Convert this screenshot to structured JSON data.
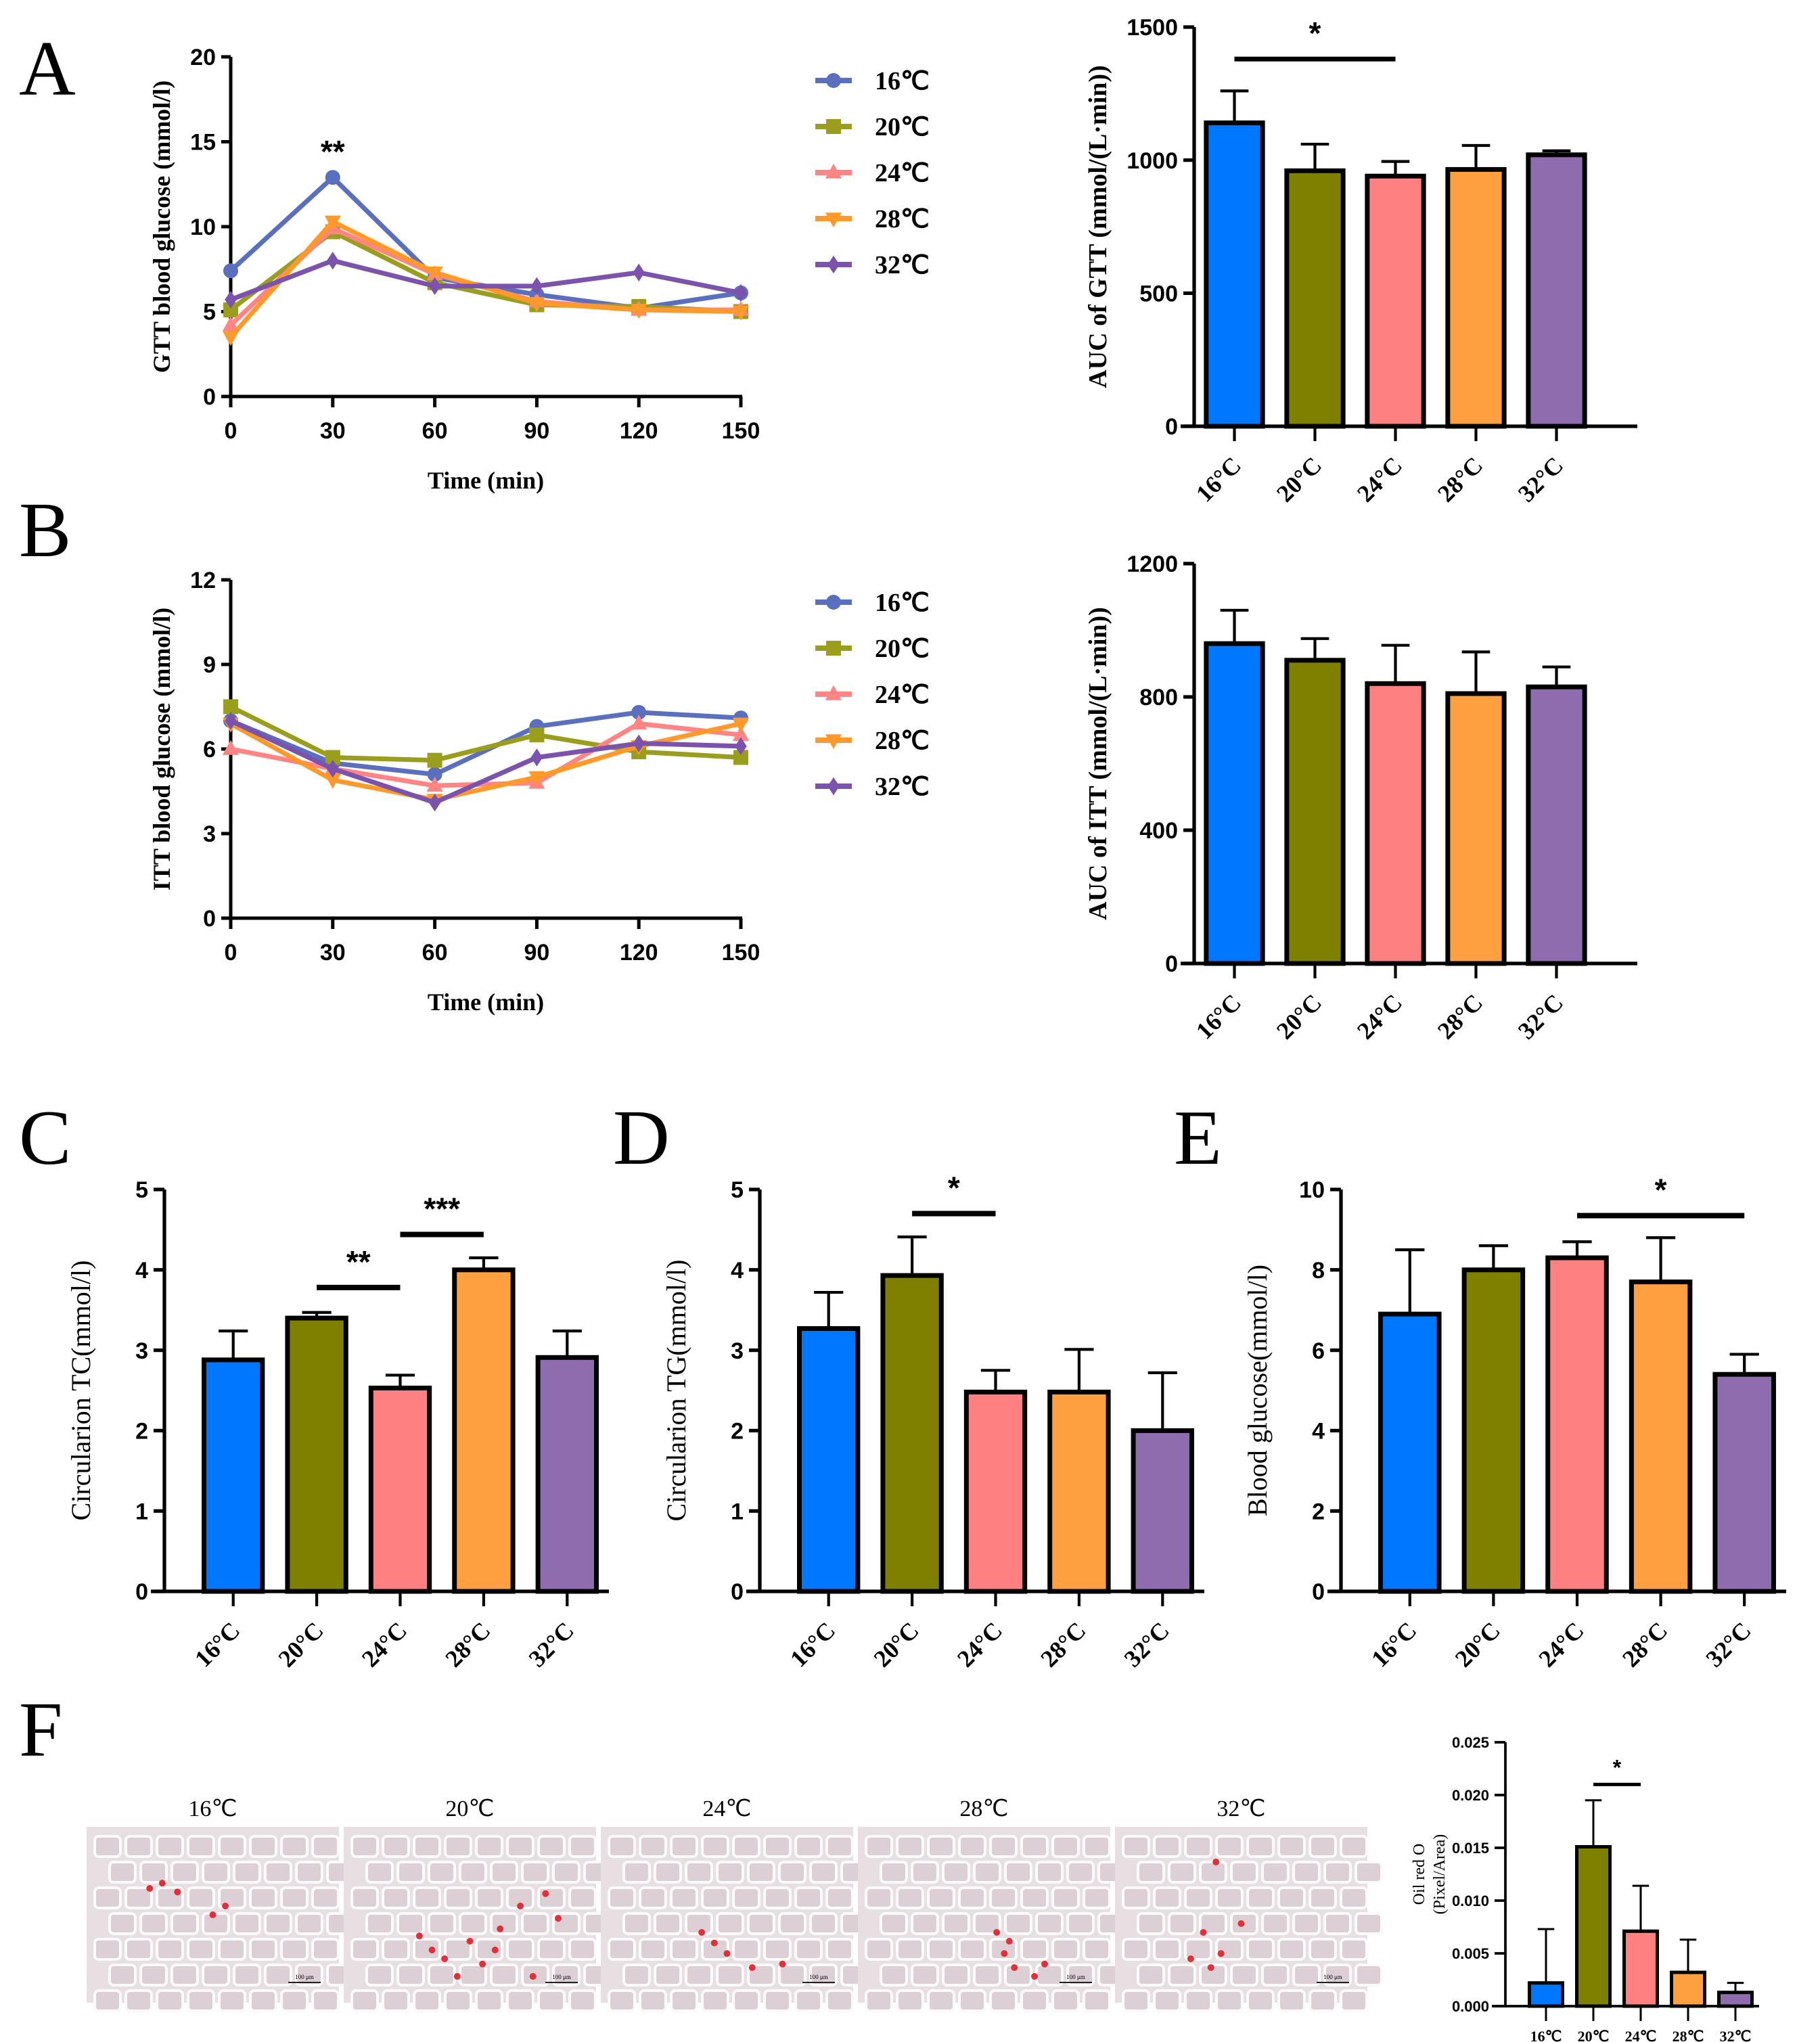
{
  "colors": {
    "16": "#0077FF",
    "20": "#808000",
    "24": "#FF8080",
    "28": "#FFA040",
    "32": "#8E6CAE",
    "line16": "#5B6FBF",
    "line20": "#9A9E1C",
    "line24": "#FF8585",
    "line28": "#FF9A2A",
    "line32": "#7B52AC"
  },
  "panel_labels": [
    "A",
    "B",
    "C",
    "D",
    "E",
    "F"
  ],
  "chart_data": [
    {
      "id": "gtt-line",
      "panel": "A",
      "type": "line",
      "title": "",
      "xlabel": "Time (min)",
      "ylabel": "GTT blood glucose (mmol/l)",
      "x": [
        0,
        30,
        60,
        90,
        120,
        150
      ],
      "xticks": [
        "0",
        "30",
        "60",
        "90",
        "120",
        "150"
      ],
      "ylim": [
        0,
        20
      ],
      "yticks": [
        "0",
        "5",
        "10",
        "15",
        "20"
      ],
      "legend_position": "right",
      "annotations": [
        {
          "x": 30,
          "text": "**"
        }
      ],
      "series": [
        {
          "name": "16℃",
          "marker": "circle",
          "values": [
            7.4,
            12.9,
            7.0,
            6.0,
            5.2,
            6.1
          ]
        },
        {
          "name": "20℃",
          "marker": "square",
          "values": [
            5.1,
            9.7,
            6.7,
            5.4,
            5.3,
            5.0
          ]
        },
        {
          "name": "24℃",
          "marker": "triangle-up",
          "values": [
            4.2,
            9.9,
            7.2,
            5.6,
            5.1,
            5.1
          ]
        },
        {
          "name": "28℃",
          "marker": "triangle-down",
          "values": [
            3.5,
            10.3,
            7.3,
            5.5,
            5.1,
            5.0
          ]
        },
        {
          "name": "32℃",
          "marker": "diamond",
          "values": [
            5.7,
            8.0,
            6.5,
            6.5,
            7.3,
            6.1
          ]
        }
      ]
    },
    {
      "id": "gtt-auc",
      "panel": "A",
      "type": "bar",
      "ylabel": "AUC of GTT (mmol/(L·min))",
      "categories": [
        "16°C",
        "20°C",
        "24°C",
        "28°C",
        "32°C"
      ],
      "values": [
        1140,
        960,
        940,
        965,
        1020
      ],
      "error": [
        1260,
        1060,
        995,
        1055,
        1035
      ],
      "ylim": [
        0,
        1500
      ],
      "yticks": [
        "0",
        "500",
        "1000",
        "1500"
      ],
      "significance": [
        {
          "from": 0,
          "to": 2,
          "text": "*"
        }
      ]
    },
    {
      "id": "itt-line",
      "panel": "B",
      "type": "line",
      "xlabel": "Time (min)",
      "ylabel": "ITT blood glucose (mmol/l)",
      "x": [
        0,
        30,
        60,
        90,
        120,
        150
      ],
      "xticks": [
        "0",
        "30",
        "60",
        "90",
        "120",
        "150"
      ],
      "ylim": [
        0,
        12
      ],
      "yticks": [
        "0",
        "3",
        "6",
        "9",
        "12"
      ],
      "legend_position": "right",
      "annotations": [],
      "series": [
        {
          "name": "16℃",
          "marker": "circle",
          "values": [
            7.0,
            5.5,
            5.1,
            6.8,
            7.3,
            7.1
          ]
        },
        {
          "name": "20℃",
          "marker": "square",
          "values": [
            7.5,
            5.7,
            5.6,
            6.5,
            5.9,
            5.7
          ]
        },
        {
          "name": "24℃",
          "marker": "triangle-up",
          "values": [
            6.0,
            5.3,
            4.7,
            4.8,
            6.9,
            6.5
          ]
        },
        {
          "name": "28℃",
          "marker": "triangle-down",
          "values": [
            6.9,
            4.9,
            4.2,
            5.0,
            6.1,
            6.9
          ]
        },
        {
          "name": "32℃",
          "marker": "diamond",
          "values": [
            7.0,
            5.3,
            4.1,
            5.7,
            6.2,
            6.1
          ]
        }
      ]
    },
    {
      "id": "itt-auc",
      "panel": "B",
      "type": "bar",
      "ylabel": "AUC of ITT (mmol/(L·min))",
      "categories": [
        "16°C",
        "20°C",
        "24°C",
        "28°C",
        "32°C"
      ],
      "values": [
        960,
        910,
        840,
        810,
        830
      ],
      "error": [
        1060,
        975,
        955,
        935,
        890
      ],
      "ylim": [
        0,
        1200
      ],
      "yticks": [
        "0",
        "400",
        "800",
        "1200"
      ],
      "significance": []
    },
    {
      "id": "tc-bar",
      "panel": "C",
      "type": "bar",
      "ylabel": "Circularion TC(mmol/l)",
      "categories": [
        "16°C",
        "20°C",
        "24°C",
        "28°C",
        "32°C"
      ],
      "values": [
        2.88,
        3.4,
        2.53,
        4.0,
        2.91
      ],
      "error": [
        3.24,
        3.47,
        2.69,
        4.15,
        3.24
      ],
      "ylim": [
        0,
        5
      ],
      "yticks": [
        "0",
        "1",
        "2",
        "3",
        "4",
        "5"
      ],
      "significance": [
        {
          "from": 1,
          "to": 2,
          "text": "**",
          "level": 3.78
        },
        {
          "from": 2,
          "to": 3,
          "text": "***",
          "level": 4.44
        }
      ]
    },
    {
      "id": "tg-bar",
      "panel": "D",
      "type": "bar",
      "ylabel": "Circularion TG(mmol/l)",
      "categories": [
        "16°C",
        "20°C",
        "24°C",
        "28°C",
        "32°C"
      ],
      "values": [
        3.27,
        3.93,
        2.48,
        2.48,
        2.0
      ],
      "error": [
        3.72,
        4.41,
        2.75,
        3.01,
        2.72
      ],
      "ylim": [
        0,
        5
      ],
      "yticks": [
        "0",
        "1",
        "2",
        "3",
        "4",
        "5"
      ],
      "significance": [
        {
          "from": 1,
          "to": 2,
          "text": "*",
          "level": 4.7
        }
      ]
    },
    {
      "id": "glucose-bar",
      "panel": "E",
      "type": "bar",
      "ylabel": "Blood glucose(mmol/l)",
      "categories": [
        "16°C",
        "20°C",
        "24°C",
        "28°C",
        "32°C"
      ],
      "values": [
        6.9,
        8.0,
        8.3,
        7.7,
        5.4
      ],
      "error": [
        8.5,
        8.6,
        8.7,
        8.8,
        5.9
      ],
      "ylim": [
        0,
        10
      ],
      "yticks": [
        "0",
        "2",
        "4",
        "6",
        "8",
        "10"
      ],
      "significance": [
        {
          "from": 2,
          "to": 4,
          "text": "*",
          "level": 9.35
        }
      ]
    },
    {
      "id": "oilred-bar",
      "panel": "F",
      "type": "bar",
      "ylabel": "Oil red O (Pixel/Area)",
      "ylabel_lines": [
        "Oil red O",
        "(Pixel/Area)"
      ],
      "categories": [
        "16℃",
        "20℃",
        "24℃",
        "28℃",
        "32℃"
      ],
      "values": [
        0.0022,
        0.0151,
        0.0071,
        0.0032,
        0.0013
      ],
      "error": [
        0.0073,
        0.0195,
        0.0114,
        0.0063,
        0.0022
      ],
      "ylim": [
        0,
        0.025
      ],
      "yticks": [
        "0.000",
        "0.005",
        "0.010",
        "0.015",
        "0.020",
        "0.025"
      ],
      "significance": [
        {
          "from": 1,
          "to": 2,
          "text": "*",
          "level": 0.021
        }
      ]
    }
  ],
  "histology": {
    "labels": [
      "16℃",
      "20℃",
      "24℃",
      "28℃",
      "32℃"
    ],
    "scale_bar": "100 μm"
  }
}
